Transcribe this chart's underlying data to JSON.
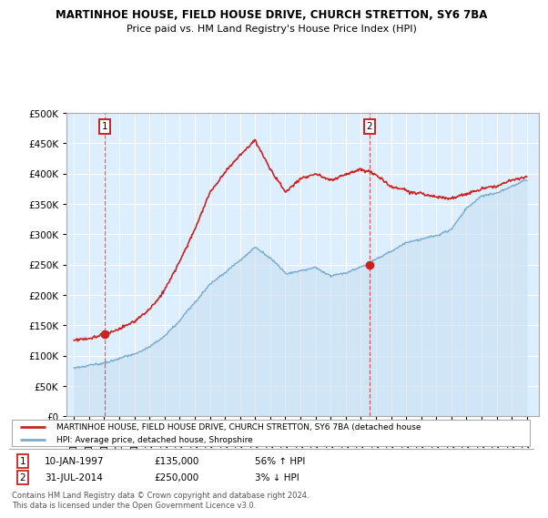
{
  "title": "MARTINHOE HOUSE, FIELD HOUSE DRIVE, CHURCH STRETTON, SY6 7BA",
  "subtitle": "Price paid vs. HM Land Registry's House Price Index (HPI)",
  "sale1_date": 1997.03,
  "sale1_price": 135000,
  "sale1_label": "1",
  "sale1_text": "10-JAN-1997",
  "sale1_amount": "£135,000",
  "sale1_pct": "56% ↑ HPI",
  "sale2_date": 2014.58,
  "sale2_price": 250000,
  "sale2_label": "2",
  "sale2_text": "31-JUL-2014",
  "sale2_amount": "£250,000",
  "sale2_pct": "3% ↓ HPI",
  "legend_line1": "MARTINHOE HOUSE, FIELD HOUSE DRIVE, CHURCH STRETTON, SY6 7BA (detached house",
  "legend_line2": "HPI: Average price, detached house, Shropshire",
  "footer": "Contains HM Land Registry data © Crown copyright and database right 2024.\nThis data is licensed under the Open Government Licence v3.0.",
  "red_color": "#cc2222",
  "blue_color": "#7aaad0",
  "bg_color": "#ddeeff",
  "ylim": [
    0,
    500000
  ],
  "xlim": [
    1994.5,
    2025.8
  ],
  "hpi_years": [
    1995,
    1996,
    1997,
    1998,
    1999,
    2000,
    2001,
    2002,
    2003,
    2004,
    2005,
    2006,
    2007,
    2008,
    2009,
    2010,
    2011,
    2012,
    2013,
    2014,
    2015,
    2016,
    2017,
    2018,
    2019,
    2020,
    2021,
    2022,
    2023,
    2024,
    2025
  ],
  "hpi_prices": [
    78000,
    82000,
    87000,
    93000,
    100000,
    112000,
    130000,
    155000,
    185000,
    215000,
    235000,
    255000,
    278000,
    260000,
    235000,
    240000,
    245000,
    232000,
    238000,
    248000,
    262000,
    275000,
    290000,
    295000,
    300000,
    310000,
    345000,
    365000,
    370000,
    380000,
    390000
  ],
  "red_years": [
    1995,
    1996,
    1997,
    1998,
    1999,
    2000,
    2001,
    2002,
    2003,
    2004,
    2005,
    2006,
    2007,
    2008,
    2009,
    2010,
    2011,
    2012,
    2013,
    2014,
    2015,
    2016,
    2017,
    2018,
    2019,
    2020,
    2021,
    2022,
    2023,
    2024,
    2025
  ],
  "red_prices": [
    128000,
    130000,
    138000,
    147000,
    158000,
    178000,
    210000,
    255000,
    310000,
    370000,
    405000,
    430000,
    455000,
    405000,
    365000,
    385000,
    395000,
    385000,
    395000,
    405000,
    395000,
    375000,
    370000,
    365000,
    360000,
    358000,
    368000,
    378000,
    385000,
    395000,
    400000
  ]
}
